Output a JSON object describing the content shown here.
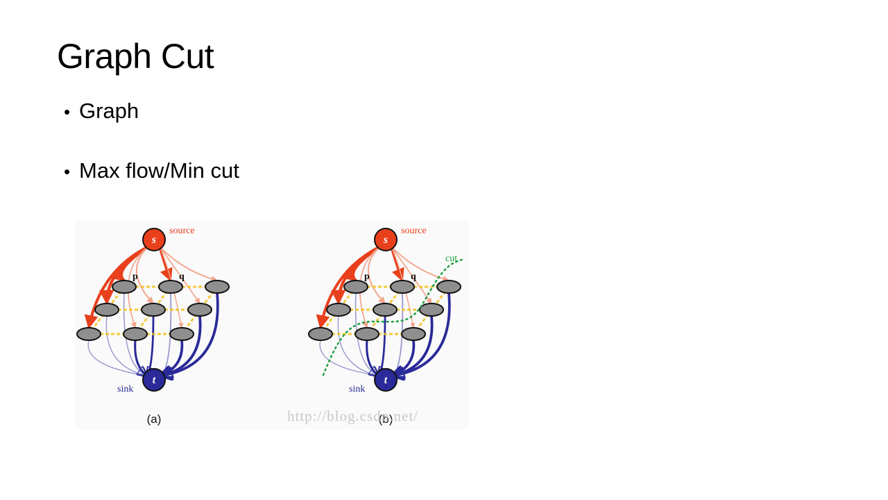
{
  "slide": {
    "title": "Graph Cut",
    "bullets": [
      "Graph",
      "Max flow/Min cut"
    ]
  },
  "figure": {
    "panels": [
      {
        "caption": "(a)",
        "source_label": "source",
        "sink_label": "sink",
        "s_label": "s",
        "t_label": "t",
        "p_label": "p",
        "q_label": "q"
      },
      {
        "caption": "(b)",
        "source_label": "source",
        "sink_label": "sink",
        "s_label": "s",
        "t_label": "t",
        "p_label": "p",
        "q_label": "q",
        "cut_label": "cut"
      }
    ],
    "watermark": "http://blog.csdn.net/",
    "colors": {
      "source": "#e8401c",
      "sink": "#2a2a9a",
      "node": "#8f8f8f",
      "n_link": "#f4c21a",
      "cut": "#1f9e3f"
    }
  }
}
